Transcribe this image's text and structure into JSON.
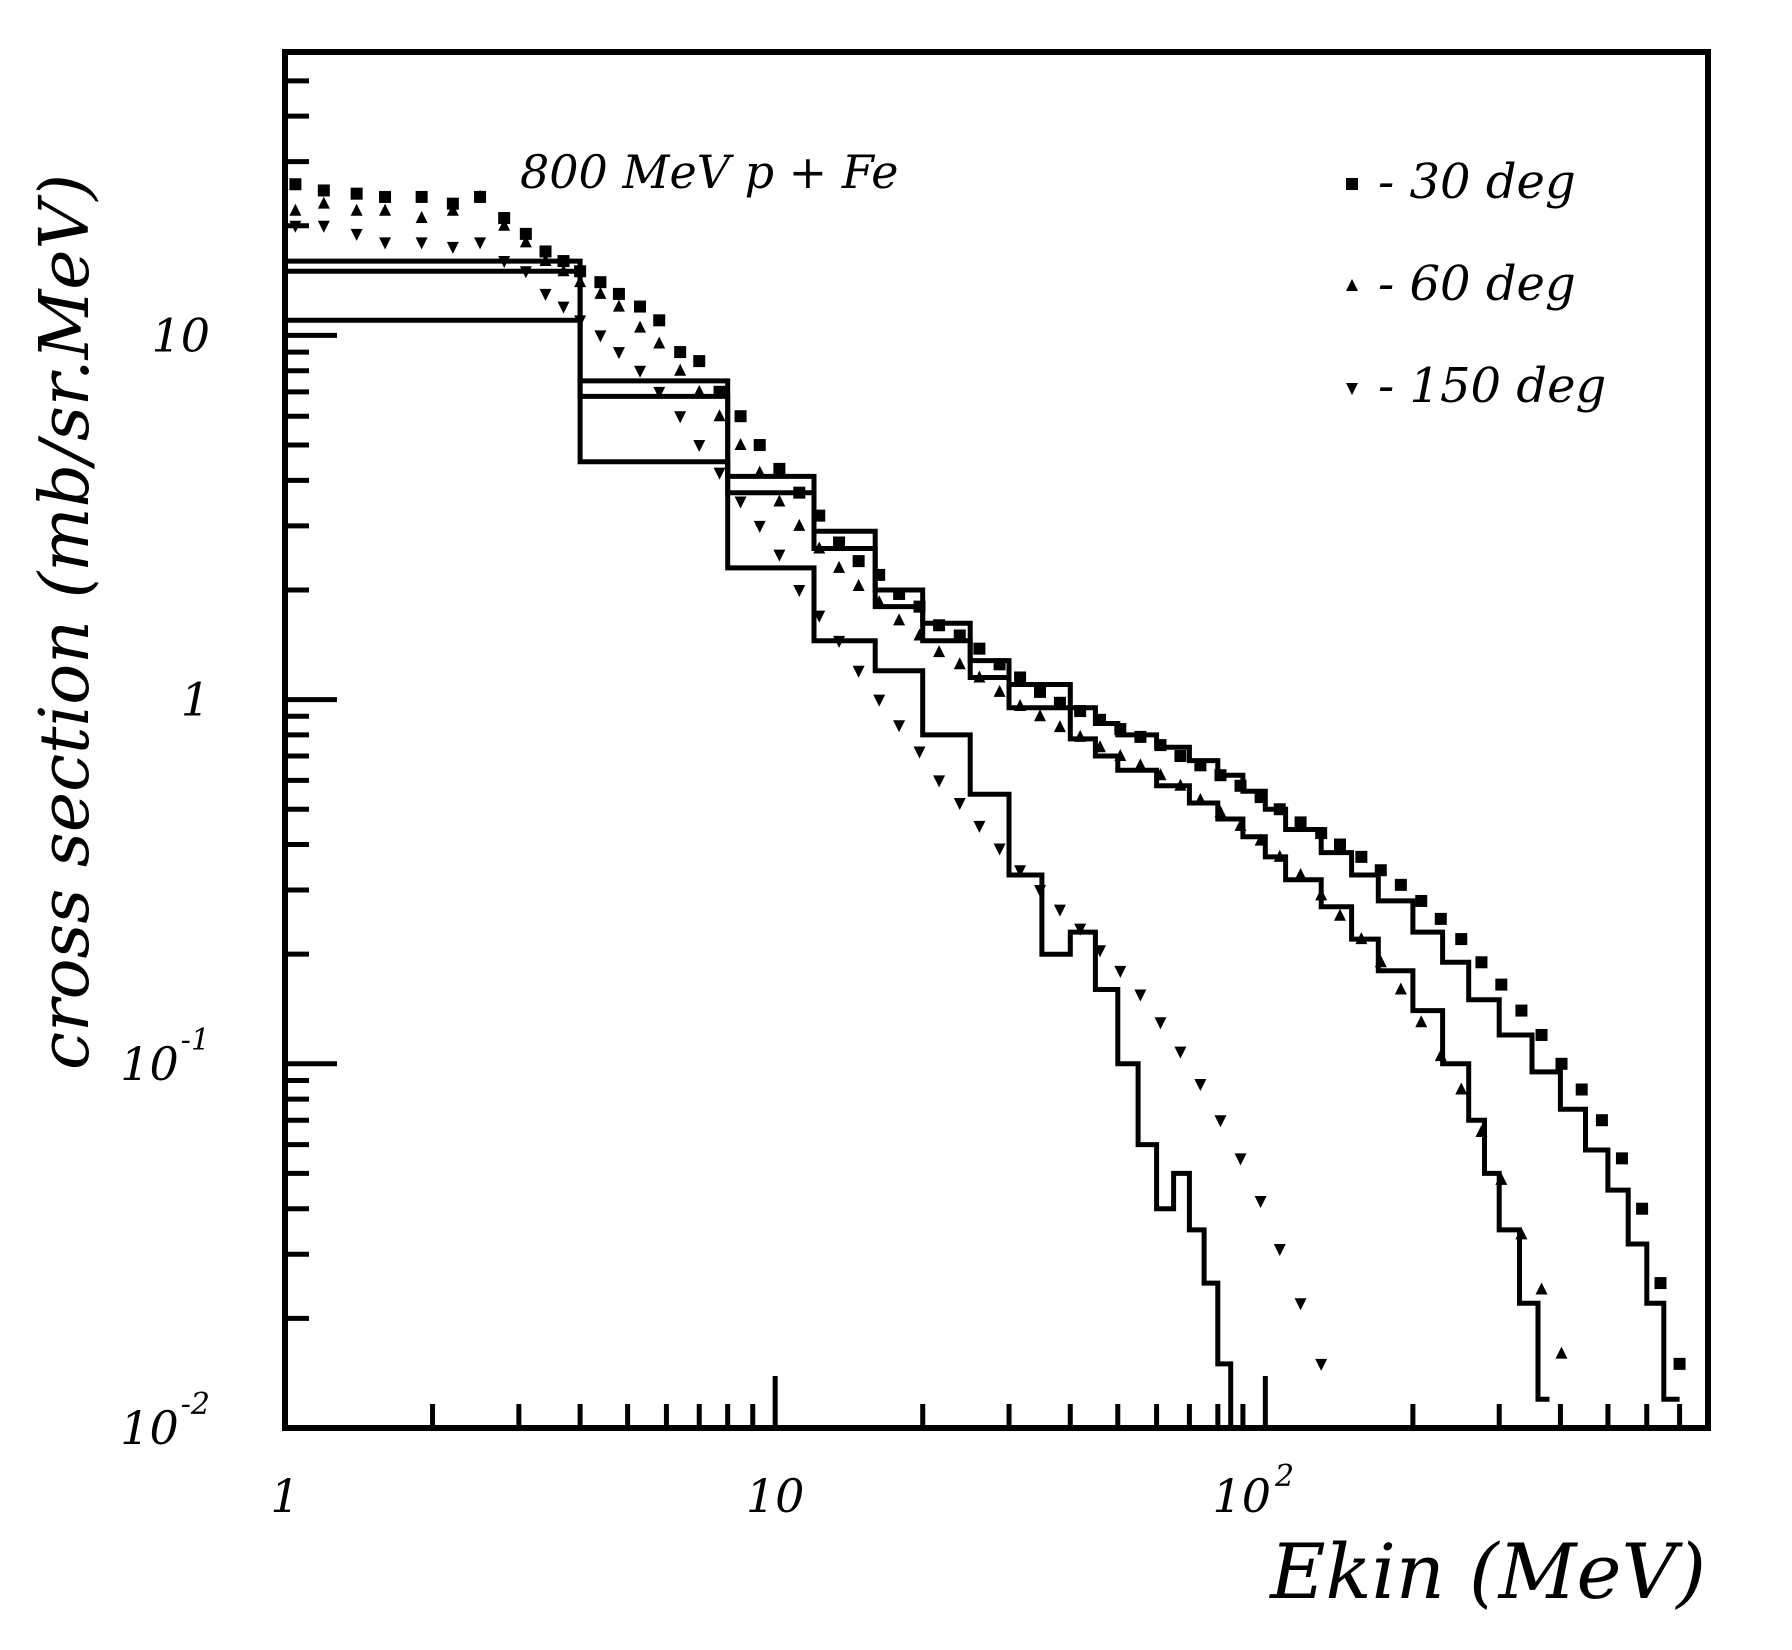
{
  "chart_data": {
    "type": "scatter",
    "annotation": "800 MeV  p + Fe",
    "xlabel": "Ekin (MeV)",
    "ylabel": "cross section (mb/sr.MeV)",
    "xscale": "log",
    "yscale": "log",
    "xlim": [
      1,
      800
    ],
    "ylim": [
      0.01,
      60
    ],
    "legend_position": "top-right",
    "x_ticks": [
      {
        "value": 1,
        "mantissa": "1",
        "exp": ""
      },
      {
        "value": 10,
        "mantissa": "10",
        "exp": ""
      },
      {
        "value": 100,
        "mantissa": "10",
        "exp": "2"
      }
    ],
    "y_ticks": [
      {
        "value": 0.01,
        "mantissa": "10",
        "exp": "-2"
      },
      {
        "value": 0.1,
        "mantissa": "10",
        "exp": "-1"
      },
      {
        "value": 1,
        "mantissa": "1",
        "exp": ""
      },
      {
        "value": 10,
        "mantissa": "10",
        "exp": ""
      }
    ],
    "series": [
      {
        "name": "- 30 deg",
        "marker": "square",
        "x": [
          1.05,
          1.2,
          1.4,
          1.6,
          1.9,
          2.2,
          2.5,
          2.8,
          3.1,
          3.4,
          3.7,
          4.0,
          4.4,
          4.8,
          5.3,
          5.8,
          6.4,
          7.0,
          7.7,
          8.5,
          9.3,
          10.2,
          11.2,
          12.3,
          13.5,
          14.8,
          16.3,
          17.9,
          19.7,
          21.6,
          23.8,
          26.1,
          28.7,
          31.6,
          34.7,
          38.1,
          41.9,
          46.0,
          50.6,
          55.6,
          61.1,
          67.1,
          73.7,
          81.0,
          89.0,
          97.8,
          107,
          118,
          130,
          142,
          157,
          172,
          189,
          208,
          228,
          251,
          276,
          303,
          333,
          366,
          402,
          442,
          486,
          534,
          587,
          640,
          700
        ],
        "y": [
          26,
          25,
          24.5,
          24,
          24,
          23,
          24,
          21,
          19,
          17,
          16,
          15,
          14,
          13,
          12,
          11,
          9,
          8.5,
          7,
          6,
          5,
          4.3,
          3.7,
          3.2,
          2.7,
          2.4,
          2.2,
          1.95,
          1.8,
          1.6,
          1.5,
          1.38,
          1.25,
          1.15,
          1.05,
          0.98,
          0.93,
          0.88,
          0.83,
          0.79,
          0.75,
          0.7,
          0.66,
          0.62,
          0.58,
          0.54,
          0.5,
          0.46,
          0.43,
          0.4,
          0.37,
          0.34,
          0.31,
          0.28,
          0.25,
          0.22,
          0.19,
          0.165,
          0.14,
          0.12,
          0.1,
          0.085,
          0.07,
          0.055,
          0.04,
          0.025,
          0.015
        ]
      },
      {
        "name": "- 60 deg",
        "marker": "triangle-up",
        "x": [
          1.05,
          1.2,
          1.4,
          1.6,
          1.9,
          2.2,
          2.5,
          2.8,
          3.1,
          3.4,
          3.7,
          4.0,
          4.4,
          4.8,
          5.3,
          5.8,
          6.4,
          7.0,
          7.7,
          8.5,
          9.3,
          10.2,
          11.2,
          12.3,
          13.5,
          14.8,
          16.3,
          17.9,
          19.7,
          21.6,
          23.8,
          26.1,
          28.7,
          31.6,
          34.7,
          38.1,
          41.9,
          46.0,
          50.6,
          55.6,
          61.1,
          67.1,
          73.7,
          81.0,
          89.0,
          97.8,
          107,
          118,
          130,
          142,
          157,
          172,
          189,
          208,
          228,
          251,
          276,
          303,
          333,
          366,
          402
        ],
        "y": [
          22,
          23,
          22,
          22,
          21,
          22,
          24,
          20,
          18,
          16,
          15,
          14,
          13,
          12,
          10.5,
          9.5,
          8,
          7,
          6,
          5,
          4.2,
          3.5,
          3,
          2.6,
          2.3,
          2.05,
          1.85,
          1.65,
          1.5,
          1.35,
          1.25,
          1.15,
          1.05,
          0.96,
          0.9,
          0.84,
          0.79,
          0.74,
          0.7,
          0.66,
          0.62,
          0.58,
          0.53,
          0.49,
          0.45,
          0.41,
          0.37,
          0.33,
          0.29,
          0.255,
          0.22,
          0.19,
          0.16,
          0.13,
          0.105,
          0.085,
          0.065,
          0.048,
          0.034,
          0.024,
          0.016
        ]
      },
      {
        "name": "- 150 deg",
        "marker": "triangle-down",
        "x": [
          1.05,
          1.2,
          1.4,
          1.6,
          1.9,
          2.2,
          2.5,
          2.8,
          3.1,
          3.4,
          3.7,
          4.0,
          4.4,
          4.8,
          5.3,
          5.8,
          6.4,
          7.0,
          7.7,
          8.5,
          9.3,
          10.2,
          11.2,
          12.3,
          13.5,
          14.8,
          16.3,
          17.9,
          19.7,
          21.6,
          23.8,
          26.1,
          28.7,
          31.6,
          34.7,
          38.1,
          41.9,
          46.0,
          50.6,
          55.6,
          61.1,
          67.1,
          73.7,
          81.0,
          89.0,
          97.8,
          107,
          118,
          130
        ],
        "y": [
          20,
          20,
          19,
          18,
          18,
          17.5,
          18,
          16,
          15,
          13,
          12,
          11,
          10,
          9,
          8,
          7,
          6,
          5,
          4.2,
          3.5,
          3,
          2.5,
          2,
          1.7,
          1.45,
          1.2,
          1,
          0.85,
          0.72,
          0.6,
          0.52,
          0.45,
          0.39,
          0.34,
          0.3,
          0.265,
          0.235,
          0.205,
          0.18,
          0.155,
          0.13,
          0.108,
          0.088,
          0.07,
          0.055,
          0.042,
          0.031,
          0.022,
          0.015
        ]
      },
      {
        "name": "",
        "marker": "step-line",
        "x": [
          1,
          4,
          4,
          8,
          8,
          12,
          12,
          16,
          16,
          20,
          20,
          25,
          25,
          30,
          30,
          40,
          40,
          45,
          45,
          50,
          50,
          60,
          60,
          70,
          70,
          80,
          80,
          90,
          90,
          100,
          100,
          110,
          110,
          130,
          130,
          150,
          150,
          170,
          170,
          200,
          200,
          230,
          230,
          260,
          260,
          300,
          300,
          350,
          350,
          400,
          400,
          450,
          450,
          500,
          500,
          550,
          550,
          600,
          600,
          650,
          650,
          700
        ],
        "y": [
          16,
          16,
          7.5,
          7.5,
          4.1,
          4.1,
          2.9,
          2.9,
          2,
          2,
          1.62,
          1.62,
          1.28,
          1.28,
          1.1,
          1.1,
          0.95,
          0.95,
          0.86,
          0.86,
          0.8,
          0.8,
          0.74,
          0.74,
          0.68,
          0.68,
          0.62,
          0.62,
          0.56,
          0.56,
          0.5,
          0.5,
          0.44,
          0.44,
          0.38,
          0.38,
          0.33,
          0.33,
          0.28,
          0.28,
          0.23,
          0.23,
          0.19,
          0.19,
          0.15,
          0.15,
          0.12,
          0.12,
          0.095,
          0.095,
          0.075,
          0.075,
          0.058,
          0.058,
          0.045,
          0.045,
          0.032,
          0.032,
          0.022,
          0.022,
          0.012,
          0.012
        ]
      },
      {
        "name": "",
        "marker": "step-line",
        "x": [
          1,
          4,
          4,
          8,
          8,
          12,
          12,
          16,
          16,
          20,
          20,
          25,
          25,
          30,
          30,
          40,
          40,
          45,
          45,
          50,
          50,
          60,
          60,
          70,
          70,
          80,
          80,
          90,
          90,
          100,
          100,
          110,
          110,
          130,
          130,
          150,
          150,
          170,
          170,
          200,
          200,
          230,
          230,
          260,
          260,
          280,
          280,
          300,
          300,
          330,
          330,
          360,
          360,
          380
        ],
        "y": [
          15,
          15,
          6.8,
          6.8,
          3.7,
          3.7,
          2.6,
          2.6,
          1.8,
          1.8,
          1.45,
          1.45,
          1.15,
          1.15,
          0.95,
          0.95,
          0.78,
          0.78,
          0.7,
          0.7,
          0.64,
          0.64,
          0.58,
          0.58,
          0.52,
          0.52,
          0.47,
          0.47,
          0.42,
          0.42,
          0.37,
          0.37,
          0.32,
          0.32,
          0.27,
          0.27,
          0.22,
          0.22,
          0.18,
          0.18,
          0.14,
          0.14,
          0.1,
          0.1,
          0.07,
          0.07,
          0.05,
          0.05,
          0.035,
          0.035,
          0.022,
          0.022,
          0.012,
          0.012
        ]
      },
      {
        "name": "",
        "marker": "step-line",
        "x": [
          1,
          4,
          4,
          8,
          8,
          12,
          12,
          16,
          16,
          20,
          20,
          25,
          25,
          30,
          30,
          35,
          35,
          40,
          40,
          45,
          45,
          50,
          50,
          55,
          55,
          60,
          60,
          65,
          65,
          70,
          70,
          75,
          75,
          80,
          80,
          85,
          85,
          90
        ],
        "y": [
          11,
          11,
          4.5,
          4.5,
          2.3,
          2.3,
          1.45,
          1.45,
          1.2,
          1.2,
          0.8,
          0.8,
          0.55,
          0.55,
          0.33,
          0.33,
          0.2,
          0.2,
          0.23,
          0.23,
          0.16,
          0.16,
          0.1,
          0.1,
          0.06,
          0.06,
          0.04,
          0.04,
          0.05,
          0.05,
          0.035,
          0.035,
          0.025,
          0.025,
          0.015,
          0.015,
          0.01,
          0.01
        ]
      }
    ]
  }
}
